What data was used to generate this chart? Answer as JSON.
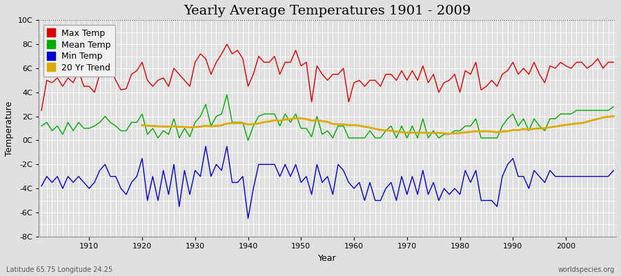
{
  "title": "Yearly Average Temperatures 1901 - 2009",
  "xlabel": "Year",
  "ylabel": "Temperature",
  "lat_lon_label": "Latitude 65.75 Longitude 24.25",
  "credit_label": "worldspecies.org",
  "years": [
    1901,
    1902,
    1903,
    1904,
    1905,
    1906,
    1907,
    1908,
    1909,
    1910,
    1911,
    1912,
    1913,
    1914,
    1915,
    1916,
    1917,
    1918,
    1919,
    1920,
    1921,
    1922,
    1923,
    1924,
    1925,
    1926,
    1927,
    1928,
    1929,
    1930,
    1931,
    1932,
    1933,
    1934,
    1935,
    1936,
    1937,
    1938,
    1939,
    1940,
    1941,
    1942,
    1943,
    1944,
    1945,
    1946,
    1947,
    1948,
    1949,
    1950,
    1951,
    1952,
    1953,
    1954,
    1955,
    1956,
    1957,
    1958,
    1959,
    1960,
    1961,
    1962,
    1963,
    1964,
    1965,
    1966,
    1967,
    1968,
    1969,
    1970,
    1971,
    1972,
    1973,
    1974,
    1975,
    1976,
    1977,
    1978,
    1979,
    1980,
    1981,
    1982,
    1983,
    1984,
    1985,
    1986,
    1987,
    1988,
    1989,
    1990,
    1991,
    1992,
    1993,
    1994,
    1995,
    1996,
    1997,
    1998,
    1999,
    2000,
    2001,
    2002,
    2003,
    2004,
    2005,
    2006,
    2007,
    2008,
    2009
  ],
  "max_temp": [
    2.5,
    5.0,
    4.8,
    5.2,
    4.5,
    5.2,
    4.8,
    5.8,
    4.5,
    4.5,
    4.0,
    5.5,
    6.0,
    6.2,
    5.0,
    4.2,
    4.3,
    5.5,
    5.8,
    6.5,
    5.0,
    4.5,
    5.0,
    5.2,
    4.5,
    6.0,
    5.5,
    5.0,
    4.5,
    6.5,
    7.2,
    6.8,
    5.5,
    6.5,
    7.2,
    8.0,
    7.2,
    7.5,
    6.8,
    4.5,
    5.5,
    7.0,
    6.5,
    6.5,
    7.0,
    5.5,
    6.5,
    6.5,
    7.5,
    6.2,
    6.5,
    3.2,
    6.2,
    5.5,
    5.0,
    5.5,
    5.5,
    6.0,
    3.2,
    4.8,
    5.0,
    4.5,
    5.0,
    5.0,
    4.5,
    5.5,
    5.5,
    5.0,
    5.8,
    5.0,
    5.8,
    5.0,
    6.2,
    4.8,
    5.5,
    4.0,
    4.8,
    5.0,
    5.5,
    4.0,
    5.8,
    5.5,
    6.5,
    4.2,
    4.5,
    5.0,
    4.5,
    5.5,
    5.8,
    6.5,
    5.5,
    6.0,
    5.5,
    6.5,
    5.5,
    4.8,
    6.2,
    6.0,
    6.5,
    6.2,
    6.0,
    6.5,
    6.5,
    6.0,
    6.3,
    6.8,
    6.0,
    6.5,
    6.5
  ],
  "mean_temp": [
    1.2,
    1.5,
    0.8,
    1.2,
    0.5,
    1.5,
    0.8,
    1.5,
    1.0,
    1.0,
    1.2,
    1.5,
    2.0,
    1.5,
    1.2,
    0.8,
    0.8,
    1.5,
    1.5,
    2.2,
    0.5,
    1.0,
    0.2,
    0.8,
    0.5,
    1.8,
    0.2,
    1.0,
    0.3,
    1.5,
    2.0,
    3.0,
    1.2,
    2.0,
    2.2,
    3.8,
    1.5,
    1.5,
    1.5,
    0.0,
    1.2,
    2.0,
    2.2,
    2.2,
    2.2,
    1.2,
    2.2,
    1.5,
    2.2,
    1.0,
    1.0,
    0.3,
    2.0,
    0.5,
    0.8,
    0.2,
    1.2,
    1.2,
    0.2,
    0.2,
    0.2,
    0.2,
    0.8,
    0.2,
    0.2,
    0.8,
    1.2,
    0.2,
    1.2,
    0.2,
    1.2,
    0.2,
    1.8,
    0.2,
    0.8,
    0.2,
    0.5,
    0.5,
    0.8,
    0.8,
    1.2,
    1.2,
    1.8,
    0.2,
    0.2,
    0.2,
    0.2,
    1.2,
    1.8,
    2.2,
    1.2,
    1.8,
    0.8,
    1.8,
    1.2,
    0.8,
    1.8,
    1.8,
    2.2,
    2.2,
    2.2,
    2.5,
    2.5,
    2.5,
    2.5,
    2.5,
    2.5,
    2.5,
    2.8
  ],
  "min_temp": [
    -3.8,
    -3.0,
    -3.5,
    -3.0,
    -4.0,
    -3.0,
    -3.5,
    -3.0,
    -3.5,
    -4.0,
    -3.5,
    -2.5,
    -2.0,
    -3.0,
    -3.0,
    -4.0,
    -4.5,
    -3.5,
    -3.0,
    -1.5,
    -5.0,
    -3.0,
    -5.0,
    -2.5,
    -4.5,
    -2.0,
    -5.5,
    -2.5,
    -4.5,
    -2.5,
    -3.0,
    -0.5,
    -3.0,
    -2.0,
    -2.5,
    -0.5,
    -3.5,
    -3.5,
    -3.0,
    -6.5,
    -4.0,
    -2.0,
    -2.0,
    -2.0,
    -2.0,
    -3.0,
    -2.0,
    -3.0,
    -2.0,
    -3.5,
    -3.0,
    -4.5,
    -2.0,
    -3.5,
    -3.0,
    -4.5,
    -2.0,
    -2.5,
    -3.5,
    -4.0,
    -3.5,
    -5.0,
    -3.5,
    -5.0,
    -5.0,
    -4.0,
    -3.5,
    -5.0,
    -3.0,
    -4.5,
    -3.0,
    -4.5,
    -2.5,
    -4.5,
    -3.5,
    -5.0,
    -4.0,
    -4.5,
    -4.0,
    -4.5,
    -2.5,
    -3.5,
    -2.5,
    -5.0,
    -5.0,
    -5.0,
    -5.5,
    -3.0,
    -2.0,
    -1.5,
    -3.0,
    -3.0,
    -4.0,
    -2.5,
    -3.0,
    -3.5,
    -2.5,
    -3.0,
    -3.0,
    -3.0,
    -3.0,
    -3.0,
    -3.0,
    -3.0,
    -3.0,
    -3.0,
    -3.0,
    -3.0,
    -2.5
  ],
  "ylim": [
    -8,
    10
  ],
  "yticks": [
    -8,
    -6,
    -4,
    -2,
    0,
    2,
    4,
    6,
    8,
    10
  ],
  "ytick_labels": [
    "-8C",
    "-6C",
    "-4C",
    "-2C",
    "0C",
    "2C",
    "4C",
    "6C",
    "8C",
    "10C"
  ],
  "max_color": "#dd0000",
  "mean_color": "#00aa00",
  "min_color": "#0000cc",
  "trend_color": "#ddaa00",
  "bg_color": "#e0e0e0",
  "plot_bg_color": "#e0e0e0",
  "grid_color": "#ffffff",
  "title_fontsize": 14,
  "label_fontsize": 9,
  "tick_fontsize": 8,
  "legend_fontsize": 9,
  "trend_window": 20
}
